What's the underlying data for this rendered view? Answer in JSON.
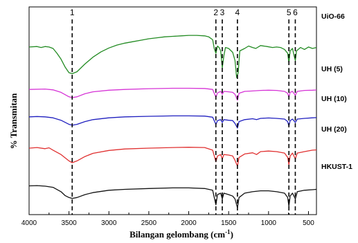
{
  "chart_data": {
    "type": "line",
    "xlabel": "Bilangan gelombang (cm",
    "xlabel_sup": "-1",
    "xlabel_close": ")",
    "ylabel": "% Transmitan",
    "xlim": [
      4000,
      400
    ],
    "x_inverted": true,
    "x_ticks": [
      4000,
      3500,
      3000,
      2500,
      2000,
      1500,
      1000,
      500
    ],
    "x_tick_labels": [
      "4000",
      "3500",
      "3000",
      "2500",
      "2000",
      "1500",
      "1000",
      "500"
    ],
    "y_tick_labels_shown": false,
    "reference_lines": [
      {
        "label": "1",
        "x": 3460
      },
      {
        "label": "2",
        "x": 1660
      },
      {
        "label": "3",
        "x": 1580
      },
      {
        "label": "4",
        "x": 1390
      },
      {
        "label": "5",
        "x": 745
      },
      {
        "label": "6",
        "x": 665
      }
    ],
    "series": [
      {
        "name": "UiO-66",
        "color": "#228b22",
        "points": [
          [
            4000,
            0.63
          ],
          [
            3900,
            0.64
          ],
          [
            3850,
            0.62
          ],
          [
            3800,
            0.64
          ],
          [
            3750,
            0.63
          ],
          [
            3700,
            0.6
          ],
          [
            3650,
            0.5
          ],
          [
            3600,
            0.38
          ],
          [
            3550,
            0.22
          ],
          [
            3500,
            0.1
          ],
          [
            3460,
            0.08
          ],
          [
            3400,
            0.12
          ],
          [
            3300,
            0.28
          ],
          [
            3200,
            0.42
          ],
          [
            3100,
            0.53
          ],
          [
            3000,
            0.61
          ],
          [
            2900,
            0.67
          ],
          [
            2800,
            0.71
          ],
          [
            2700,
            0.74
          ],
          [
            2600,
            0.77
          ],
          [
            2500,
            0.8
          ],
          [
            2400,
            0.82
          ],
          [
            2300,
            0.84
          ],
          [
            2200,
            0.85
          ],
          [
            2100,
            0.86
          ],
          [
            2000,
            0.87
          ],
          [
            1900,
            0.87
          ],
          [
            1800,
            0.86
          ],
          [
            1750,
            0.84
          ],
          [
            1700,
            0.78
          ],
          [
            1680,
            0.6
          ],
          [
            1660,
            0.5
          ],
          [
            1640,
            0.65
          ],
          [
            1620,
            0.62
          ],
          [
            1600,
            0.55
          ],
          [
            1580,
            0.2
          ],
          [
            1560,
            0.45
          ],
          [
            1540,
            0.62
          ],
          [
            1500,
            0.6
          ],
          [
            1450,
            0.52
          ],
          [
            1420,
            0.35
          ],
          [
            1400,
            0.0
          ],
          [
            1380,
            0.1
          ],
          [
            1360,
            0.55
          ],
          [
            1300,
            0.6
          ],
          [
            1250,
            0.65
          ],
          [
            1200,
            0.62
          ],
          [
            1160,
            0.6
          ],
          [
            1100,
            0.66
          ],
          [
            1020,
            0.64
          ],
          [
            950,
            0.62
          ],
          [
            900,
            0.63
          ],
          [
            850,
            0.62
          ],
          [
            800,
            0.58
          ],
          [
            760,
            0.5
          ],
          [
            745,
            0.3
          ],
          [
            730,
            0.55
          ],
          [
            700,
            0.6
          ],
          [
            680,
            0.45
          ],
          [
            665,
            0.35
          ],
          [
            650,
            0.55
          ],
          [
            600,
            0.62
          ],
          [
            550,
            0.58
          ],
          [
            500,
            0.63
          ],
          [
            450,
            0.6
          ],
          [
            400,
            0.62
          ]
        ]
      },
      {
        "name": "UH (5)",
        "color": "#d633d6",
        "points": [
          [
            4000,
            0.6
          ],
          [
            3800,
            0.62
          ],
          [
            3700,
            0.58
          ],
          [
            3600,
            0.45
          ],
          [
            3500,
            0.22
          ],
          [
            3460,
            0.18
          ],
          [
            3400,
            0.22
          ],
          [
            3300,
            0.38
          ],
          [
            3200,
            0.48
          ],
          [
            3000,
            0.56
          ],
          [
            2800,
            0.6
          ],
          [
            2500,
            0.64
          ],
          [
            2200,
            0.66
          ],
          [
            2000,
            0.66
          ],
          [
            1800,
            0.65
          ],
          [
            1700,
            0.6
          ],
          [
            1660,
            0.2
          ],
          [
            1640,
            0.42
          ],
          [
            1600,
            0.5
          ],
          [
            1580,
            0.35
          ],
          [
            1560,
            0.5
          ],
          [
            1500,
            0.48
          ],
          [
            1450,
            0.45
          ],
          [
            1420,
            0.35
          ],
          [
            1390,
            0.05
          ],
          [
            1370,
            0.4
          ],
          [
            1300,
            0.5
          ],
          [
            1200,
            0.52
          ],
          [
            1100,
            0.55
          ],
          [
            1000,
            0.56
          ],
          [
            900,
            0.55
          ],
          [
            800,
            0.5
          ],
          [
            760,
            0.4
          ],
          [
            745,
            0.2
          ],
          [
            730,
            0.45
          ],
          [
            700,
            0.5
          ],
          [
            665,
            0.3
          ],
          [
            640,
            0.5
          ],
          [
            550,
            0.55
          ],
          [
            450,
            0.56
          ],
          [
            400,
            0.57
          ]
        ]
      },
      {
        "name": "UH (10)",
        "color": "#1f1fbf",
        "points": [
          [
            4000,
            0.6
          ],
          [
            3900,
            0.62
          ],
          [
            3800,
            0.6
          ],
          [
            3700,
            0.55
          ],
          [
            3600,
            0.42
          ],
          [
            3500,
            0.2
          ],
          [
            3460,
            0.15
          ],
          [
            3400,
            0.2
          ],
          [
            3300,
            0.35
          ],
          [
            3200,
            0.45
          ],
          [
            3000,
            0.55
          ],
          [
            2800,
            0.6
          ],
          [
            2500,
            0.63
          ],
          [
            2200,
            0.65
          ],
          [
            2000,
            0.65
          ],
          [
            1800,
            0.64
          ],
          [
            1700,
            0.58
          ],
          [
            1660,
            0.2
          ],
          [
            1640,
            0.4
          ],
          [
            1600,
            0.45
          ],
          [
            1580,
            0.3
          ],
          [
            1560,
            0.45
          ],
          [
            1500,
            0.42
          ],
          [
            1450,
            0.4
          ],
          [
            1420,
            0.25
          ],
          [
            1390,
            0.0
          ],
          [
            1370,
            0.35
          ],
          [
            1300,
            0.45
          ],
          [
            1200,
            0.5
          ],
          [
            1150,
            0.45
          ],
          [
            1100,
            0.52
          ],
          [
            1000,
            0.54
          ],
          [
            900,
            0.52
          ],
          [
            800,
            0.48
          ],
          [
            760,
            0.35
          ],
          [
            745,
            0.1
          ],
          [
            730,
            0.4
          ],
          [
            700,
            0.48
          ],
          [
            665,
            0.3
          ],
          [
            640,
            0.48
          ],
          [
            550,
            0.52
          ],
          [
            450,
            0.55
          ],
          [
            400,
            0.56
          ]
        ]
      },
      {
        "name": "UH (20)",
        "color": "#e03030",
        "points": [
          [
            4000,
            0.62
          ],
          [
            3900,
            0.64
          ],
          [
            3800,
            0.6
          ],
          [
            3750,
            0.63
          ],
          [
            3700,
            0.55
          ],
          [
            3600,
            0.4
          ],
          [
            3500,
            0.18
          ],
          [
            3460,
            0.12
          ],
          [
            3400,
            0.18
          ],
          [
            3300,
            0.33
          ],
          [
            3200,
            0.44
          ],
          [
            3000,
            0.54
          ],
          [
            2800,
            0.59
          ],
          [
            2500,
            0.62
          ],
          [
            2200,
            0.64
          ],
          [
            2000,
            0.65
          ],
          [
            1800,
            0.64
          ],
          [
            1700,
            0.55
          ],
          [
            1660,
            0.15
          ],
          [
            1640,
            0.35
          ],
          [
            1600,
            0.4
          ],
          [
            1580,
            0.25
          ],
          [
            1560,
            0.4
          ],
          [
            1500,
            0.38
          ],
          [
            1450,
            0.35
          ],
          [
            1420,
            0.2
          ],
          [
            1390,
            0.0
          ],
          [
            1370,
            0.3
          ],
          [
            1300,
            0.42
          ],
          [
            1200,
            0.46
          ],
          [
            1150,
            0.4
          ],
          [
            1100,
            0.5
          ],
          [
            1000,
            0.52
          ],
          [
            900,
            0.5
          ],
          [
            800,
            0.45
          ],
          [
            760,
            0.3
          ],
          [
            745,
            0.05
          ],
          [
            730,
            0.35
          ],
          [
            700,
            0.45
          ],
          [
            665,
            0.25
          ],
          [
            640,
            0.45
          ],
          [
            550,
            0.5
          ],
          [
            450,
            0.55
          ],
          [
            400,
            0.56
          ]
        ]
      },
      {
        "name": "HKUST-1",
        "color": "#111111",
        "points": [
          [
            4000,
            0.75
          ],
          [
            3900,
            0.76
          ],
          [
            3800,
            0.74
          ],
          [
            3700,
            0.7
          ],
          [
            3600,
            0.55
          ],
          [
            3550,
            0.42
          ],
          [
            3500,
            0.35
          ],
          [
            3460,
            0.32
          ],
          [
            3400,
            0.35
          ],
          [
            3300,
            0.45
          ],
          [
            3200,
            0.52
          ],
          [
            3000,
            0.6
          ],
          [
            2800,
            0.63
          ],
          [
            2500,
            0.66
          ],
          [
            2200,
            0.68
          ],
          [
            2000,
            0.68
          ],
          [
            1800,
            0.66
          ],
          [
            1700,
            0.6
          ],
          [
            1660,
            0.1
          ],
          [
            1640,
            0.45
          ],
          [
            1600,
            0.5
          ],
          [
            1580,
            0.3
          ],
          [
            1560,
            0.5
          ],
          [
            1500,
            0.45
          ],
          [
            1450,
            0.4
          ],
          [
            1420,
            0.3
          ],
          [
            1390,
            0.0
          ],
          [
            1370,
            0.35
          ],
          [
            1300,
            0.5
          ],
          [
            1200,
            0.55
          ],
          [
            1100,
            0.58
          ],
          [
            1000,
            0.58
          ],
          [
            900,
            0.55
          ],
          [
            800,
            0.5
          ],
          [
            760,
            0.35
          ],
          [
            745,
            0.05
          ],
          [
            730,
            0.4
          ],
          [
            700,
            0.5
          ],
          [
            665,
            0.3
          ],
          [
            640,
            0.55
          ],
          [
            550,
            0.6
          ],
          [
            450,
            0.62
          ],
          [
            400,
            0.63
          ]
        ]
      }
    ]
  }
}
